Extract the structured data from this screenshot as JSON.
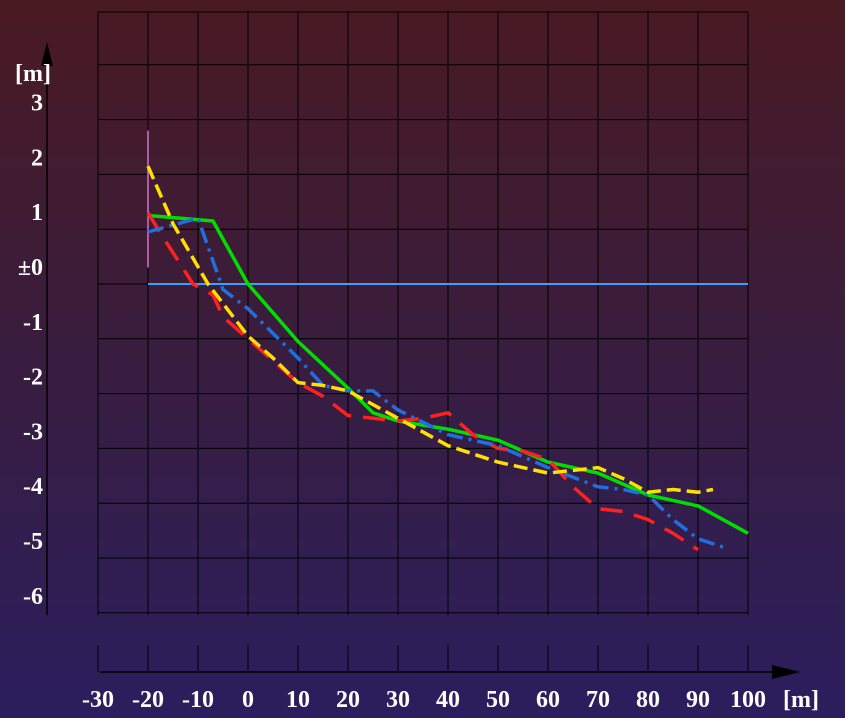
{
  "chart_data": {
    "type": "line",
    "title": "",
    "x_unit": "[m]",
    "y_unit": "[m]",
    "x_ticks": [
      "-30",
      "-20",
      "-10",
      "0",
      "10",
      "20",
      "30",
      "40",
      "50",
      "60",
      "70",
      "80",
      "90",
      "100"
    ],
    "y_ticks": [
      "3",
      "2",
      "1",
      "±0",
      "-1",
      "-2",
      "-3",
      "-4",
      "-5",
      "-6"
    ],
    "xlim": [
      -30,
      100
    ],
    "ylim": [
      -6,
      4.5
    ],
    "grid": true,
    "reference_line": {
      "y": 0,
      "x_range": [
        -20,
        100
      ],
      "color": "#3aa0ff"
    },
    "vertical_marker": {
      "x": -20,
      "y_range": [
        0.3,
        2.8
      ],
      "color": "#d070d0"
    },
    "series": [
      {
        "color": "#00dd00",
        "dash": "solid",
        "x": [
          -20,
          -7,
          0,
          10,
          20,
          25,
          30,
          40,
          50,
          60,
          70,
          80,
          90,
          100
        ],
        "y": [
          1.25,
          1.15,
          0.0,
          -1.05,
          -1.9,
          -2.35,
          -2.5,
          -2.65,
          -2.85,
          -3.25,
          -3.45,
          -3.85,
          -4.05,
          -4.55
        ]
      },
      {
        "color": "#ff2020",
        "dash": "long",
        "x": [
          -20,
          -18,
          -11,
          -7,
          -5,
          0,
          5,
          10,
          15,
          20,
          25,
          30,
          35,
          40,
          45,
          50,
          55,
          60,
          65,
          70,
          75,
          80,
          85,
          90
        ],
        "y": [
          1.3,
          1.0,
          0.0,
          -0.2,
          -0.6,
          -1.0,
          -1.4,
          -1.8,
          -2.05,
          -2.4,
          -2.45,
          -2.5,
          -2.45,
          -2.35,
          -2.75,
          -3.0,
          -3.05,
          -3.2,
          -3.7,
          -4.1,
          -4.15,
          -4.3,
          -4.55,
          -4.85
        ]
      },
      {
        "color": "#1f6fe0",
        "dash": "dashdot",
        "x": [
          -20,
          -10,
          -5,
          0,
          10,
          15,
          20,
          25,
          30,
          40,
          50,
          60,
          70,
          75,
          80,
          85,
          90,
          95
        ],
        "y": [
          0.95,
          1.2,
          -0.1,
          -0.45,
          -1.35,
          -1.85,
          -1.95,
          -1.95,
          -2.3,
          -2.75,
          -2.95,
          -3.35,
          -3.7,
          -3.75,
          -3.85,
          -4.3,
          -4.65,
          -4.8
        ]
      },
      {
        "color": "#ffe000",
        "dash": "medium",
        "x": [
          -20,
          -15,
          -8,
          0,
          5,
          10,
          15,
          20,
          30,
          40,
          50,
          60,
          70,
          75,
          80,
          85,
          90,
          93
        ],
        "y": [
          2.15,
          1.1,
          0.0,
          -0.95,
          -1.35,
          -1.8,
          -1.85,
          -1.95,
          -2.45,
          -2.95,
          -3.25,
          -3.45,
          -3.35,
          -3.55,
          -3.8,
          -3.75,
          -3.8,
          -3.75
        ]
      }
    ]
  }
}
